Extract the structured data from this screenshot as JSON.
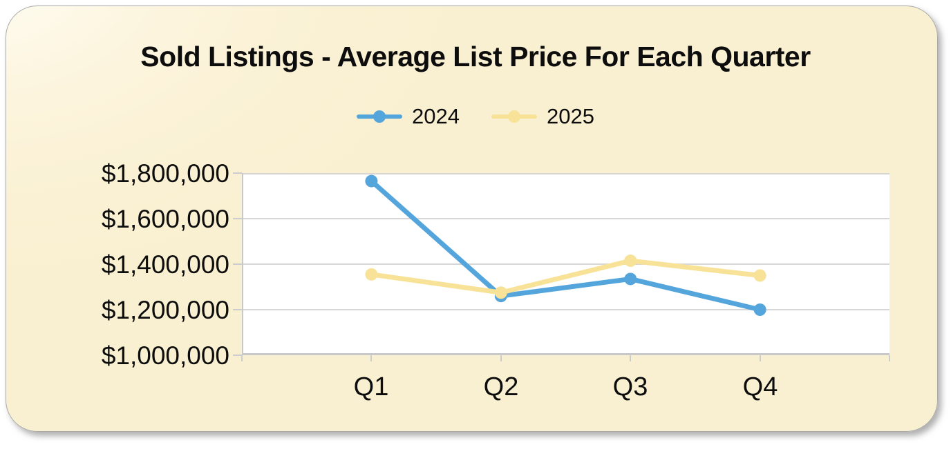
{
  "chart_data": {
    "type": "line",
    "title": "Sold Listings - Average List Price For Each Quarter",
    "categories": [
      "Q1",
      "Q2",
      "Q3",
      "Q4"
    ],
    "series": [
      {
        "name": "2024",
        "color": "#54a5db",
        "values": [
          1765000,
          1260000,
          1335000,
          1200000
        ]
      },
      {
        "name": "2025",
        "color": "#f7e298",
        "values": [
          1355000,
          1275000,
          1415000,
          1350000
        ]
      }
    ],
    "ylim": [
      1000000,
      1800000
    ],
    "y_tick_step": 200000,
    "y_tick_labels": [
      "$1,800,000",
      "$1,600,000",
      "$1,400,000",
      "$1,200,000",
      "$1,000,000"
    ],
    "legend_position": "top-center",
    "grid": "horizontal",
    "marker": "circle",
    "plot_bg": "#ffffff",
    "card_bg": "#faf1d4",
    "grid_color": "#d6d6d6",
    "axis_color": "#c9c9c9",
    "text_color": "#0d0d0d"
  }
}
